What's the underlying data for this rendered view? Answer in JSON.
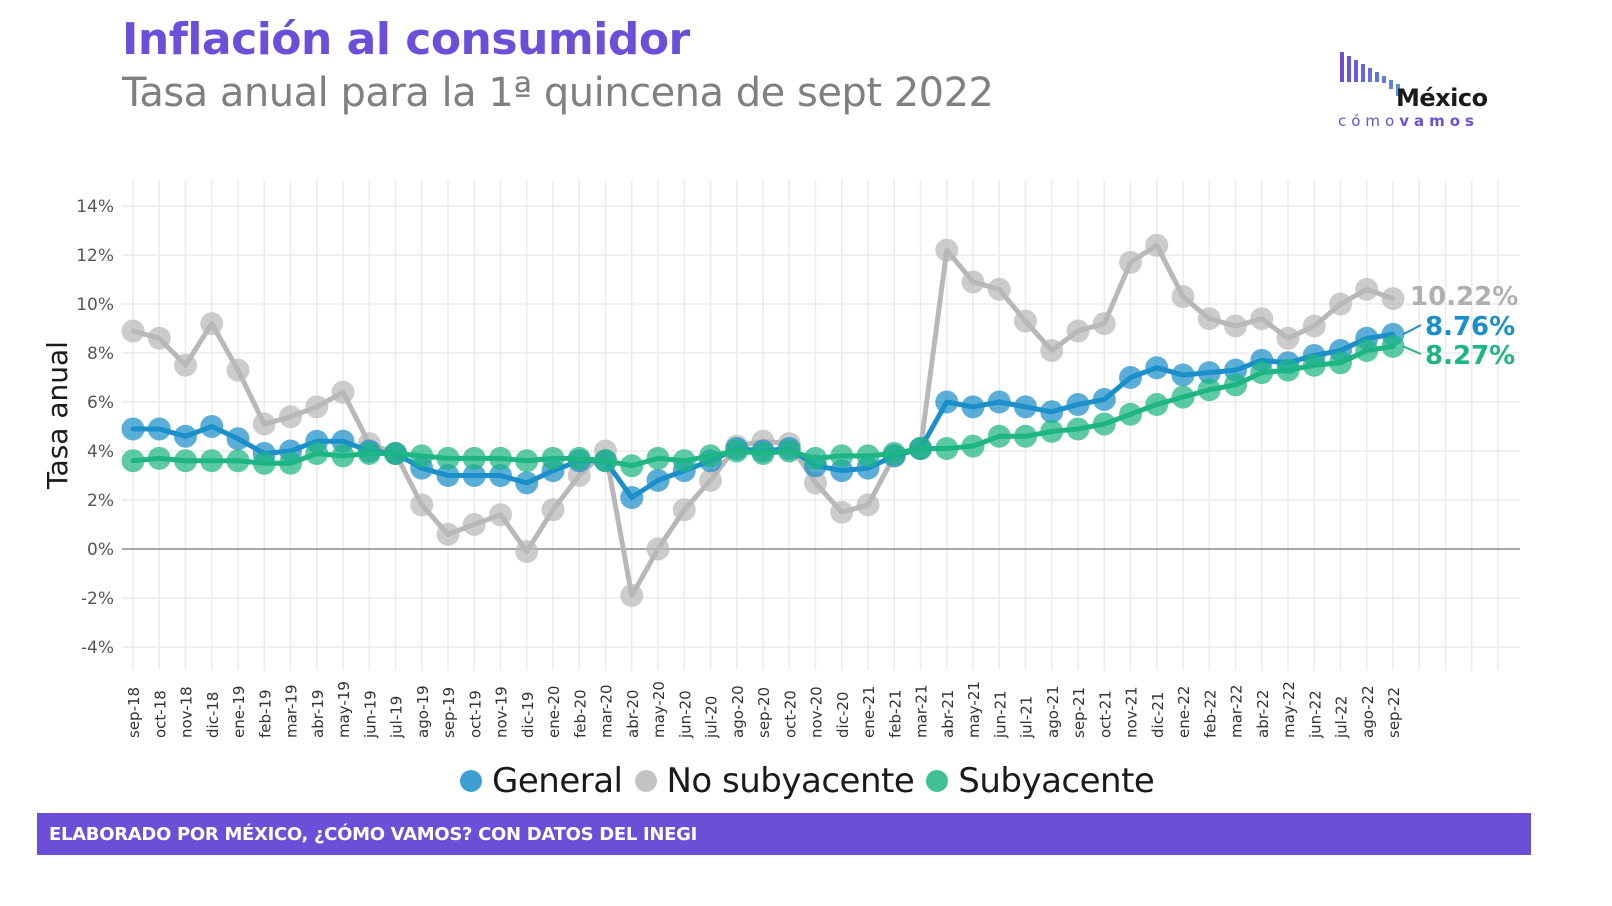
{
  "header": {
    "title": "Inflación al consumidor",
    "subtitle": "Tasa anual para la 1ª quincena de sept 2022"
  },
  "logo": {
    "word": "México",
    "sub_light": "cómo",
    "sub_bold": "vamos",
    "color": "#6b4fd8"
  },
  "footer": {
    "text": "ELABORADO POR MÉXICO, ¿CÓMO VAMOS? CON DATOS DEL INEGI"
  },
  "chart_data": {
    "type": "line",
    "title": "Inflación al consumidor",
    "subtitle": "Tasa anual para la 1ª quincena de sept 2022",
    "xlabel": "",
    "ylabel": "Tasa anual",
    "ylim": [
      -4,
      14
    ],
    "yticks": [
      -4,
      -2,
      0,
      2,
      4,
      6,
      8,
      10,
      12,
      14
    ],
    "ytick_labels": [
      "-4%",
      "-2%",
      "0%",
      "2%",
      "4%",
      "6%",
      "8%",
      "10%",
      "12%",
      "14%"
    ],
    "grid": true,
    "legend_position": "bottom",
    "categories": [
      "sep-18",
      "oct-18",
      "nov-18",
      "dic-18",
      "ene-19",
      "feb-19",
      "mar-19",
      "abr-19",
      "may-19",
      "jun-19",
      "jul-19",
      "ago-19",
      "sep-19",
      "oct-19",
      "nov-19",
      "dic-19",
      "ene-20",
      "feb-20",
      "mar-20",
      "abr-20",
      "may-20",
      "jun-20",
      "jul-20",
      "ago-20",
      "sep-20",
      "oct-20",
      "nov-20",
      "dic-20",
      "ene-21",
      "feb-21",
      "mar-21",
      "abr-21",
      "may-21",
      "jun-21",
      "jul-21",
      "ago-21",
      "sep-21",
      "oct-21",
      "nov-21",
      "dic-21",
      "ene-22",
      "feb-22",
      "mar-22",
      "abr-22",
      "may-22",
      "jun-22",
      "jul-22",
      "ago-22",
      "sep-22"
    ],
    "series": [
      {
        "name": "No subyacente",
        "color": "#b8b8b8",
        "end_label": "10.22%",
        "values": [
          8.9,
          8.6,
          7.5,
          9.2,
          7.3,
          5.1,
          5.4,
          5.8,
          6.4,
          4.3,
          3.9,
          1.8,
          0.6,
          1.0,
          1.4,
          -0.1,
          1.6,
          3.0,
          4.0,
          -1.9,
          0.0,
          1.6,
          2.8,
          4.2,
          4.4,
          4.3,
          2.7,
          1.5,
          1.8,
          3.8,
          4.1,
          12.2,
          10.9,
          10.6,
          9.3,
          8.1,
          8.9,
          9.2,
          11.7,
          12.4,
          10.3,
          9.4,
          9.1,
          9.4,
          8.6,
          9.1,
          10.0,
          10.6,
          10.22
        ]
      },
      {
        "name": "General",
        "color": "#1b8fc9",
        "end_label": "8.76%",
        "values": [
          4.9,
          4.9,
          4.6,
          5.0,
          4.5,
          3.9,
          4.0,
          4.4,
          4.4,
          4.0,
          3.9,
          3.3,
          3.0,
          3.0,
          3.0,
          2.7,
          3.2,
          3.6,
          3.6,
          2.1,
          2.8,
          3.2,
          3.6,
          4.1,
          4.0,
          4.1,
          3.4,
          3.2,
          3.3,
          3.8,
          4.1,
          6.0,
          5.8,
          6.0,
          5.8,
          5.6,
          5.9,
          6.1,
          7.0,
          7.4,
          7.1,
          7.2,
          7.3,
          7.7,
          7.6,
          7.9,
          8.1,
          8.6,
          8.76
        ]
      },
      {
        "name": "Subyacente",
        "color": "#1db584",
        "end_label": "8.27%",
        "values": [
          3.6,
          3.7,
          3.6,
          3.6,
          3.6,
          3.5,
          3.5,
          3.9,
          3.8,
          3.9,
          3.9,
          3.8,
          3.7,
          3.7,
          3.7,
          3.6,
          3.7,
          3.7,
          3.6,
          3.4,
          3.7,
          3.6,
          3.8,
          4.0,
          3.9,
          4.0,
          3.7,
          3.8,
          3.8,
          3.9,
          4.1,
          4.1,
          4.2,
          4.6,
          4.6,
          4.8,
          4.9,
          5.1,
          5.5,
          5.9,
          6.2,
          6.5,
          6.7,
          7.2,
          7.3,
          7.5,
          7.6,
          8.1,
          8.27
        ]
      }
    ],
    "legend": [
      {
        "name": "General",
        "color": "#1b8fc9"
      },
      {
        "name": "No subyacente",
        "color": "#b8b8b8"
      },
      {
        "name": "Subyacente",
        "color": "#1db584"
      }
    ]
  }
}
